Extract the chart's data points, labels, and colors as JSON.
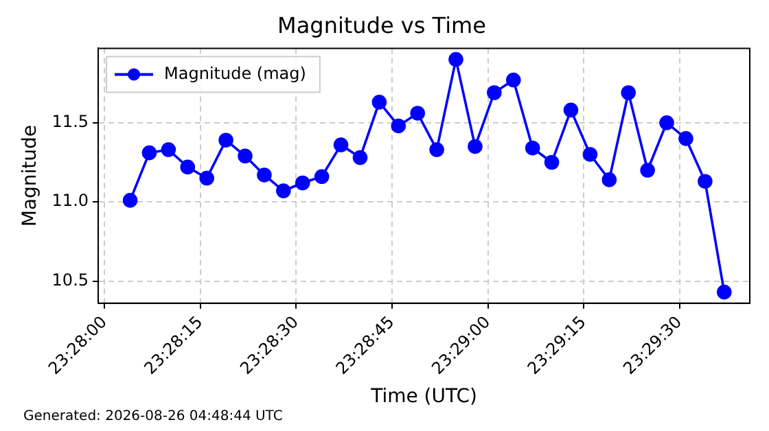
{
  "chart_data": {
    "type": "line",
    "title": "Magnitude vs Time",
    "xlabel": "Time (UTC)",
    "ylabel": "Magnitude",
    "x": [
      23.467778,
      23.468611,
      23.469444,
      23.470278,
      23.471111,
      23.471944,
      23.472778,
      23.473611,
      23.474444,
      23.475278,
      23.476111,
      23.476944,
      23.477778,
      23.478611,
      23.479444,
      23.480278,
      23.481111,
      23.481944,
      23.482778,
      23.483611,
      23.484444,
      23.485278,
      23.486111,
      23.486944,
      23.487778,
      23.488611,
      23.489444,
      23.490278,
      23.491111,
      23.491944,
      23.492778,
      23.493611
    ],
    "series": [
      {
        "name": "Magnitude (mag)",
        "color": "#0000ff",
        "values": [
          11.01,
          11.31,
          11.33,
          11.22,
          11.15,
          11.39,
          11.29,
          11.17,
          11.07,
          11.12,
          11.16,
          11.36,
          11.28,
          11.63,
          11.48,
          11.56,
          11.33,
          11.9,
          11.35,
          11.69,
          11.77,
          11.34,
          11.25,
          11.58,
          11.3,
          11.14,
          11.69,
          11.2,
          11.5,
          11.4,
          11.13,
          10.43
        ]
      }
    ],
    "xlim": [
      23.466389,
      23.494722
    ],
    "xticks": [
      {
        "value": 23.466667,
        "label": "23:28:00"
      },
      {
        "value": 23.470833,
        "label": "23:28:15"
      },
      {
        "value": 23.475,
        "label": "23:28:30"
      },
      {
        "value": 23.479167,
        "label": "23:28:45"
      },
      {
        "value": 23.483333,
        "label": "23:29:00"
      },
      {
        "value": 23.4875,
        "label": "23:29:15"
      },
      {
        "value": 23.491667,
        "label": "23:29:30"
      }
    ],
    "ylim": [
      10.36,
      11.97
    ],
    "yticks": [
      {
        "value": 10.5,
        "label": "10.5"
      },
      {
        "value": 11,
        "label": "11.0"
      },
      {
        "value": 11.5,
        "label": "11.5"
      }
    ],
    "grid": true,
    "legend": "top left",
    "marker": "circle",
    "line_style": "solid",
    "annotations": [
      "Generated: 2026-08-26 04:48:44 UTC"
    ]
  }
}
